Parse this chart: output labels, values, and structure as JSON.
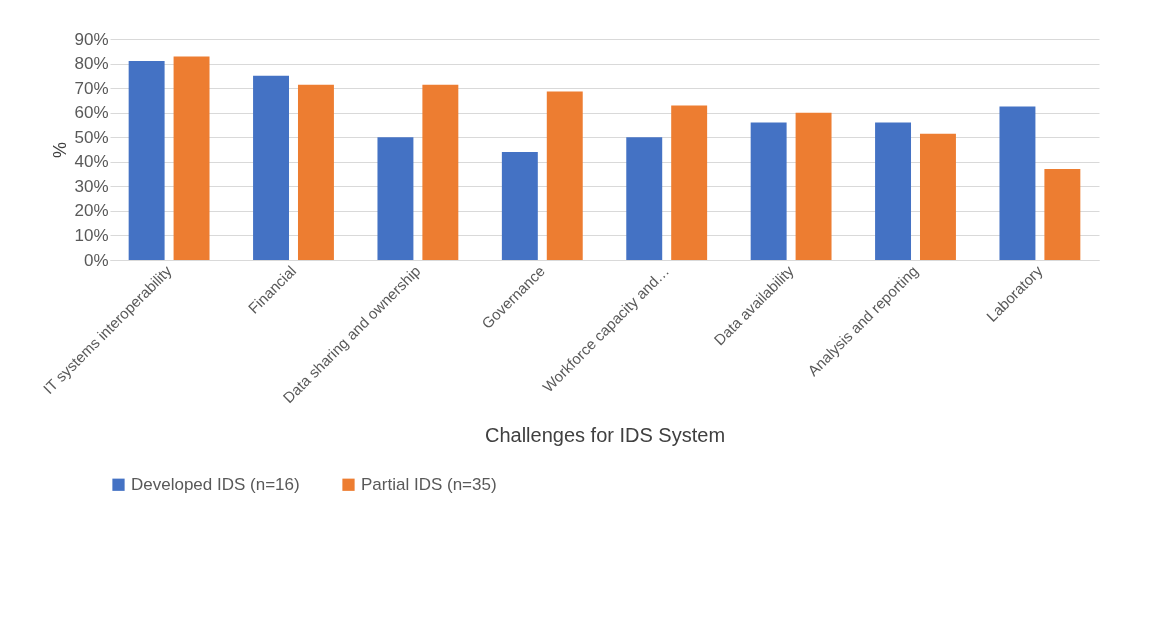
{
  "chart_data": {
    "type": "bar",
    "xlabel": "Challenges for IDS System",
    "ylabel": "%",
    "categories": [
      "IT systems interoperability",
      "Financial",
      "Data sharing and ownership",
      "Governance",
      "Workforce capacity and…",
      "Data availability",
      "Analysis and reporting",
      "Laboratory"
    ],
    "series": [
      {
        "name": "Developed IDS (n=16)",
        "color": "#4472c4",
        "values": [
          81,
          75,
          50,
          44,
          50,
          56,
          56,
          62.5
        ]
      },
      {
        "name": "Partial IDS (n=35)",
        "color": "#ed7d31",
        "values": [
          82.9,
          71.4,
          71.4,
          68.6,
          62.9,
          60,
          51.4,
          37.1
        ]
      }
    ],
    "ylim": [
      0,
      90
    ],
    "yticks": [
      {
        "value": 0,
        "label": "0%"
      },
      {
        "value": 10,
        "label": "10%"
      },
      {
        "value": 20,
        "label": "20%"
      },
      {
        "value": 30,
        "label": "30%"
      },
      {
        "value": 40,
        "label": "40%"
      },
      {
        "value": 50,
        "label": "50%"
      },
      {
        "value": 60,
        "label": "60%"
      },
      {
        "value": 70,
        "label": "70%"
      },
      {
        "value": 80,
        "label": "80%"
      },
      {
        "value": 90,
        "label": "90%"
      }
    ],
    "grid": "y",
    "legend": "bottom"
  }
}
